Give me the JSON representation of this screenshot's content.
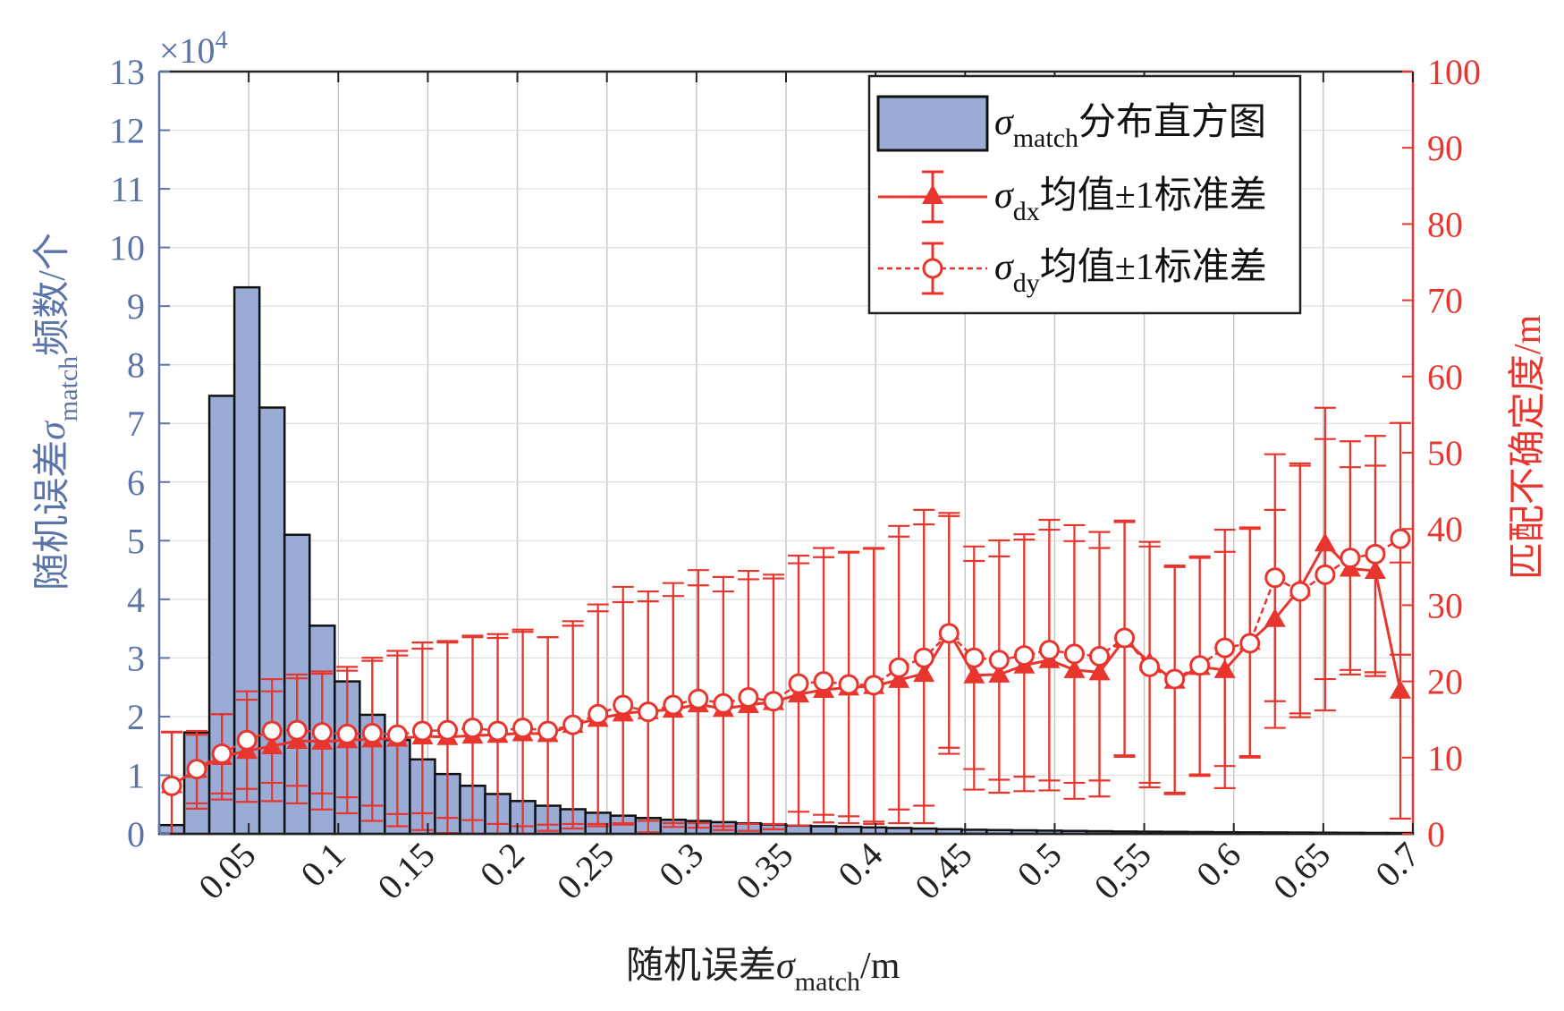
{
  "chart_data": {
    "type": "bar",
    "xlabel": "随机误差σmatch/m",
    "xlabel_parts": {
      "prefix": "随机误差",
      "sym": "σ",
      "sub": "match",
      "suffix": "/m"
    },
    "ylabel_left": "随机误差σmatch频数/个",
    "ylabel_left_parts": {
      "prefix": "随机误差",
      "sym": "σ",
      "sub": "match",
      "suffix": "频数/个"
    },
    "ylabel_right": "匹配不确定度/m",
    "left_exponent": {
      "base": "×10",
      "exp": "4"
    },
    "xlim": [
      0,
      0.7
    ],
    "ylim_left": [
      0,
      13
    ],
    "ylim_right": [
      0,
      100
    ],
    "x_ticks": [
      "0.05",
      "0.1",
      "0.15",
      "0.2",
      "0.25",
      "0.3",
      "0.35",
      "0.4",
      "0.45",
      "0.5",
      "0.55",
      "0.6",
      "0.65",
      "0.7"
    ],
    "y_left_ticks": [
      "0",
      "1",
      "2",
      "3",
      "4",
      "5",
      "6",
      "7",
      "8",
      "9",
      "10",
      "11",
      "12",
      "13"
    ],
    "y_right_ticks": [
      "0",
      "10",
      "20",
      "30",
      "40",
      "50",
      "60",
      "70",
      "80",
      "90",
      "100"
    ],
    "grid": true,
    "legend_position": "top-right",
    "colors": {
      "bar_fill": "#9aabd6",
      "bar_edge": "#111111",
      "series": "#e8352e",
      "left_axis": "#5a73a8",
      "right_axis": "#e8352e",
      "grid": "#c8c8c8"
    },
    "histogram": {
      "name": "σmatch分布直方图",
      "name_parts": {
        "sym": "σ",
        "sub": "match",
        "suffix": "分布直方图"
      },
      "bin_width": 0.014,
      "bins_x0": [
        0,
        0.014,
        0.028,
        0.042,
        0.056,
        0.07,
        0.084,
        0.098,
        0.112,
        0.126,
        0.14,
        0.154,
        0.168,
        0.182,
        0.196,
        0.21,
        0.224,
        0.238,
        0.252,
        0.266,
        0.28,
        0.294,
        0.308,
        0.322,
        0.336,
        0.35,
        0.364,
        0.378,
        0.392,
        0.406,
        0.42,
        0.434,
        0.448,
        0.462,
        0.476,
        0.49,
        0.504,
        0.518,
        0.532,
        0.546,
        0.56,
        0.574,
        0.588,
        0.602,
        0.616,
        0.63,
        0.644,
        0.658,
        0.672,
        0.686
      ],
      "values": [
        0.15,
        1.73,
        7.47,
        9.32,
        7.27,
        5.1,
        3.55,
        2.6,
        2.03,
        1.6,
        1.27,
        1.02,
        0.82,
        0.68,
        0.56,
        0.48,
        0.42,
        0.36,
        0.31,
        0.27,
        0.24,
        0.22,
        0.2,
        0.18,
        0.16,
        0.14,
        0.13,
        0.12,
        0.11,
        0.1,
        0.09,
        0.08,
        0.07,
        0.065,
        0.06,
        0.055,
        0.05,
        0.045,
        0.04,
        0.037,
        0.034,
        0.031,
        0.028,
        0.026,
        0.024,
        0.022,
        0.02,
        0.018,
        0.016,
        0.015
      ]
    },
    "series": [
      {
        "name": "σdx均值±1标准差",
        "name_parts": {
          "sym": "σ",
          "sub": "dx",
          "suffix": "均值±1标准差"
        },
        "marker": "filled-triangle",
        "line_style": "solid",
        "x": [
          0.007,
          0.021,
          0.035,
          0.049,
          0.063,
          0.077,
          0.091,
          0.105,
          0.119,
          0.133,
          0.147,
          0.161,
          0.175,
          0.189,
          0.203,
          0.217,
          0.231,
          0.245,
          0.259,
          0.273,
          0.287,
          0.301,
          0.315,
          0.329,
          0.343,
          0.357,
          0.371,
          0.385,
          0.399,
          0.413,
          0.427,
          0.441,
          0.455,
          0.469,
          0.483,
          0.497,
          0.511,
          0.525,
          0.539,
          0.553,
          0.567,
          0.581,
          0.595,
          0.609,
          0.623,
          0.637,
          0.651,
          0.665,
          0.679,
          0.693
        ],
        "values": [
          6.4,
          8.4,
          10.1,
          10.9,
          11.5,
          12.2,
          12.1,
          12.3,
          12.4,
          12.5,
          12.8,
          12.7,
          12.9,
          13,
          13.2,
          13.1,
          14.3,
          15.1,
          15.8,
          16.1,
          16.3,
          17,
          16.4,
          16.9,
          17.3,
          18.3,
          18.9,
          19.2,
          19.4,
          20.2,
          21,
          26.5,
          20.8,
          20.9,
          22.1,
          22.8,
          21.5,
          21.2,
          25.5,
          22.5,
          20.1,
          21.9,
          21.5,
          25.2,
          28.2,
          32.2,
          38.1,
          34.8,
          34.5,
          18.8
        ],
        "std": [
          7,
          5.1,
          5.6,
          6.7,
          7.2,
          8.2,
          8.9,
          9.6,
          10.7,
          11.5,
          12.3,
          12.6,
          12.9,
          13.2,
          13.3,
          12.7,
          13.6,
          14.1,
          14.6,
          14.4,
          14.9,
          15.6,
          15.4,
          16.5,
          16.7,
          17.2,
          17.4,
          17.8,
          18.1,
          18.8,
          19.6,
          15.2,
          15,
          15.5,
          16.5,
          17.1,
          16.9,
          16.3,
          15.4,
          15.8,
          14.9,
          14.3,
          15.5,
          15,
          14.3,
          16.4,
          17.8,
          13.3,
          13.8,
          16.8
        ]
      },
      {
        "name": "σdy均值±1标准差",
        "name_parts": {
          "sym": "σ",
          "sub": "dy",
          "suffix": "均值±1标准差"
        },
        "marker": "open-circle",
        "line_style": "dashed",
        "x": [
          0.007,
          0.021,
          0.035,
          0.049,
          0.063,
          0.077,
          0.091,
          0.105,
          0.119,
          0.133,
          0.147,
          0.161,
          0.175,
          0.189,
          0.203,
          0.217,
          0.231,
          0.245,
          0.259,
          0.273,
          0.287,
          0.301,
          0.315,
          0.329,
          0.343,
          0.357,
          0.371,
          0.385,
          0.399,
          0.413,
          0.427,
          0.441,
          0.455,
          0.469,
          0.483,
          0.497,
          0.511,
          0.525,
          0.539,
          0.553,
          0.567,
          0.581,
          0.595,
          0.609,
          0.623,
          0.637,
          0.651,
          0.665,
          0.679,
          0.693
        ],
        "values": [
          6.3,
          8.5,
          10.5,
          12.3,
          13.5,
          13.6,
          13.3,
          13.1,
          13.2,
          13,
          13.5,
          13.6,
          13.9,
          13.5,
          13.9,
          13.5,
          14.3,
          15.7,
          16.9,
          16,
          16.9,
          17.7,
          17.1,
          17.9,
          17.4,
          19.7,
          20,
          19.6,
          19.5,
          21.8,
          23.1,
          26.3,
          23.1,
          22.8,
          23.4,
          24.1,
          23.6,
          23.3,
          25.7,
          21.9,
          20.3,
          22.1,
          24.4,
          25,
          33.6,
          31.8,
          34,
          36.2,
          36.7,
          38.7
        ],
        "std": [
          7,
          4.5,
          5.2,
          6.4,
          6.8,
          7.3,
          8,
          8.3,
          9.5,
          10.4,
          10.8,
          11.5,
          12.1,
          12.2,
          12.9,
          12.3,
          13,
          14.4,
          15.5,
          15.8,
          16,
          16.9,
          16.6,
          16.6,
          16.1,
          16.8,
          17.5,
          17.3,
          17.9,
          18.6,
          19.4,
          15.8,
          14.6,
          15.7,
          15.9,
          17.1,
          16.9,
          16.3,
          15.4,
          15.8,
          14.9,
          14.3,
          15.5,
          15,
          16.2,
          16.5,
          17.8,
          15.3,
          15.5,
          15.2
        ]
      }
    ]
  }
}
